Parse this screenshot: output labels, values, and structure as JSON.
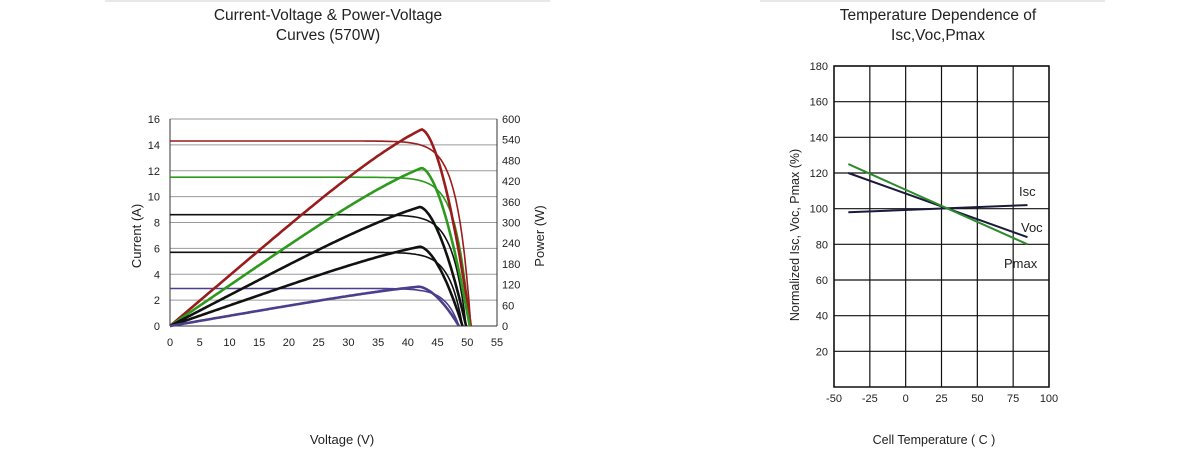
{
  "chart_data": [
    {
      "type": "line",
      "title": "Current-Voltage & Power-Voltage Curves (570W)",
      "title_lines": [
        "Current-Voltage & Power-Voltage",
        "Curves (570W)"
      ],
      "xlabel": "Voltage (V)",
      "ylabel": "Current (A)",
      "y2label": "Power (W)",
      "xlim": [
        0,
        55
      ],
      "ylim": [
        0,
        16
      ],
      "y2lim": [
        0,
        600
      ],
      "xticks": [
        0,
        5,
        10,
        15,
        20,
        25,
        30,
        35,
        40,
        45,
        50,
        55
      ],
      "yticks": [
        0,
        2,
        4,
        6,
        8,
        10,
        12,
        14,
        16
      ],
      "y2ticks": [
        0,
        60,
        120,
        180,
        240,
        300,
        360,
        420,
        480,
        540,
        600
      ],
      "grid": "horizontal",
      "iv_curves": [
        {
          "color": "#9a1b1b",
          "isc": 14.3,
          "voc": 50.6,
          "vmp": 41.5
        },
        {
          "color": "#2d9a1e",
          "isc": 11.5,
          "voc": 50.4,
          "vmp": 41.5
        },
        {
          "color": "#111111",
          "isc": 8.6,
          "voc": 49.8,
          "vmp": 41.5
        },
        {
          "color": "#111111",
          "isc": 5.7,
          "voc": 49.2,
          "vmp": 41.5
        },
        {
          "color": "#4a3f8c",
          "isc": 2.9,
          "voc": 48.6,
          "vmp": 41.5
        }
      ],
      "pv_curves": [
        {
          "color": "#9a1b1b",
          "pmax": 570,
          "vmp": 42.3,
          "voc": 50.6
        },
        {
          "color": "#2d9a1e",
          "pmax": 458,
          "vmp": 42.3,
          "voc": 50.4
        },
        {
          "color": "#111111",
          "pmax": 345,
          "vmp": 42.0,
          "voc": 49.8
        },
        {
          "color": "#111111",
          "pmax": 230,
          "vmp": 42.0,
          "voc": 49.2
        },
        {
          "color": "#4a3f8c",
          "pmax": 114,
          "vmp": 41.8,
          "voc": 48.6
        }
      ]
    },
    {
      "type": "line",
      "title": "Temperature Dependence of Isc,Voc,Pmax",
      "title_lines": [
        "Temperature Dependence of",
        "Isc,Voc,Pmax"
      ],
      "xlabel": "Cell Temperature ( C )",
      "ylabel": "Normalized Isc, Voc, Pmax (%)",
      "xlim": [
        -50,
        100
      ],
      "ylim": [
        0,
        180
      ],
      "xticks": [
        -50,
        -25,
        0,
        25,
        50,
        75,
        100
      ],
      "yticks": [
        20,
        40,
        60,
        80,
        100,
        120,
        140,
        160,
        180
      ],
      "grid": "both",
      "series": [
        {
          "name": "Isc",
          "color": "#1a1a3a",
          "x": [
            -40,
            85
          ],
          "y": [
            98,
            102
          ]
        },
        {
          "name": "Voc",
          "color": "#1a1a3a",
          "x": [
            -40,
            85
          ],
          "y": [
            120,
            84
          ]
        },
        {
          "name": "Pmax",
          "color": "#2d8a2d",
          "x": [
            -40,
            85
          ],
          "y": [
            125,
            80
          ]
        }
      ]
    }
  ]
}
